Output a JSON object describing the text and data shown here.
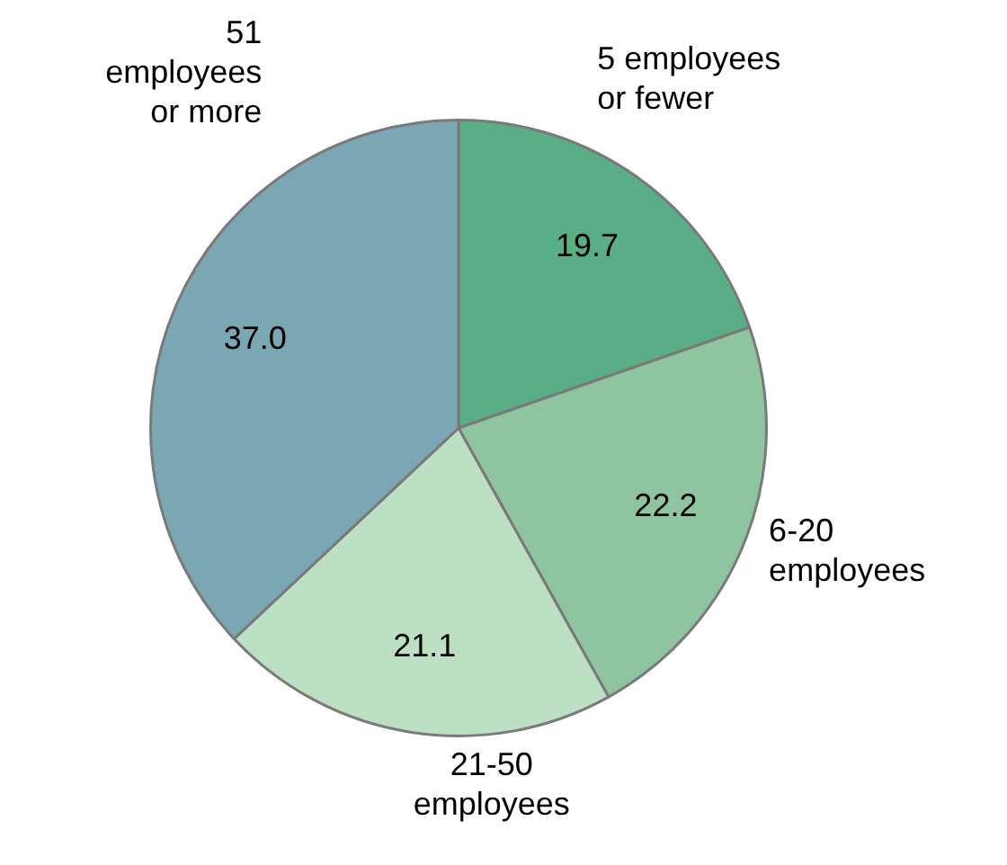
{
  "chart_data": {
    "type": "pie",
    "categories": [
      "5 employees or fewer",
      "6-20 employees",
      "21-50 employees",
      "51 employees or more"
    ],
    "values": [
      19.7,
      22.2,
      21.1,
      37.0
    ],
    "colors": [
      "#5aae85",
      "#8fc4a0",
      "#bddfc4",
      "#7ba7b5"
    ],
    "value_labels": [
      "19.7",
      "22.2",
      "21.1",
      "37.0"
    ],
    "legend": false
  }
}
